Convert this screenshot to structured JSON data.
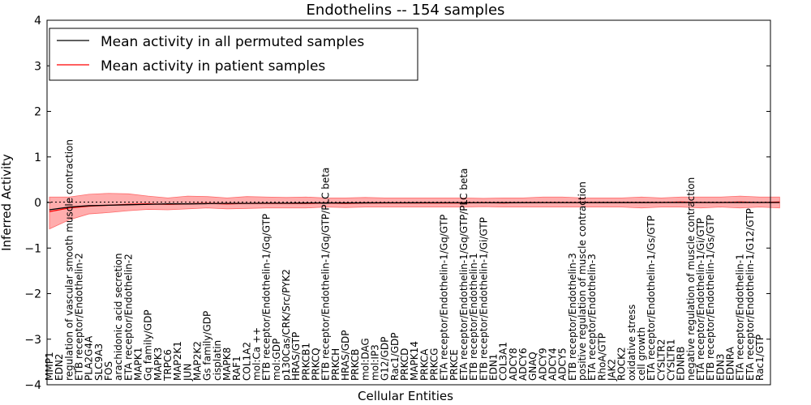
{
  "chart_data": {
    "type": "line",
    "title": "Endothelins -- 154 samples",
    "xlabel": "Cellular Entities",
    "ylabel": "Inferred Activity",
    "ylim": [
      -4,
      4
    ],
    "yticks": [
      "−4",
      "−3",
      "−2",
      "−1",
      "0",
      "1",
      "2",
      "3",
      "4"
    ],
    "grid": false,
    "legend_position": "top-left",
    "categories": [
      "MMP1",
      "EDN2",
      "regulation of vascular smooth muscle contraction",
      "ETB receptor/Endothelin-2",
      "PLA2G4A",
      "SLC9A3",
      "FOS",
      "arachidonic acid secretion",
      "ETA receptor/Endothelin-2",
      "MAPK1",
      "Gq family/GDP",
      "MAPK3",
      "TRPC6",
      "MAP2K1",
      "JUN",
      "MAP2K2",
      "Gs family/GDP",
      "cisplatin",
      "MAPK8",
      "RAF1",
      "COL1A2",
      "mol:Ca ++",
      "ETB receptor/Endothelin-1/Gq/GTP",
      "mol:GDP",
      "p130Cas/CRK/Src/PYK2",
      "HRAS/GTP",
      "PRKCB1",
      "PRKCQ",
      "ETB receptor/Endothelin-1/Gq/GTP/PLC beta",
      "PRKCH",
      "HRAS/GDP",
      "PRKCB",
      "mol:DAG",
      "mol:IP3",
      "G12/GDP",
      "Rac1/GDP",
      "PRKCD",
      "MAPK14",
      "PRKCA",
      "PRKCG",
      "ETA receptor/Endothelin-1/Gq/GTP",
      "PRKCE",
      "ETA receptor/Endothelin-1/Gq/GTP/PLC beta",
      "ETB receptor/Endothelin-1",
      "ETB receptor/Endothelin-1/Gi/GTP",
      "EDN1",
      "COL3A1",
      "ADCY8",
      "ADCY6",
      "GNAQ",
      "ADCY9",
      "ADCY4",
      "ADCY5",
      "ETB receptor/Endothelin-3",
      "positive regulation of muscle contraction",
      "ETA receptor/Endothelin-3",
      "RhoA/GTP",
      "JAK2",
      "ROCK2",
      "oxidative stress",
      "cell growth",
      "ETA receptor/Endothelin-1/Gs/GTP",
      "CYSLTR2",
      "CYSLTR1",
      "EDNRB",
      "negative regulation of muscle contraction",
      "ETA receptor/Endothelin-1/Gi/GTP",
      "ETB receptor/Endothelin-1/Gs/GTP",
      "EDN3",
      "EDNRA",
      "ETA receptor/Endothelin-1",
      "ETA receptor/Endothelin-1/G12/GTP",
      "Rac1/GTP"
    ],
    "series": [
      {
        "name": "Mean activity in all permuted samples",
        "color": "#000000"
      },
      {
        "name": "Mean activity in patient samples",
        "color": "#ff0000"
      }
    ],
    "permuted_x": [
      0,
      2,
      4,
      6,
      8,
      10,
      12,
      14,
      16,
      18,
      20,
      22,
      24,
      26,
      28,
      30,
      32,
      34,
      36,
      38,
      40,
      42,
      44,
      46,
      48,
      50,
      52,
      54,
      56,
      58,
      60,
      62,
      64,
      66,
      68,
      70,
      72,
      74
    ],
    "permuted_mean": [
      -0.16,
      -0.1,
      -0.07,
      -0.06,
      -0.05,
      -0.04,
      -0.03,
      -0.03,
      -0.025,
      -0.02,
      -0.02,
      -0.015,
      -0.015,
      -0.012,
      -0.01,
      -0.01,
      -0.008,
      -0.007,
      -0.006,
      -0.005,
      -0.005,
      -0.004,
      -0.004,
      -0.003,
      -0.003,
      -0.002,
      -0.002,
      -0.002,
      -0.001,
      -0.001,
      -0.001,
      0,
      0,
      0,
      0,
      0,
      0,
      0
    ],
    "patient_x": [
      0,
      2,
      4,
      6,
      8,
      10,
      12,
      14,
      16,
      18,
      20,
      22,
      24,
      26,
      28,
      30,
      32,
      34,
      36,
      38,
      40,
      42,
      44,
      46,
      48,
      50,
      52,
      54,
      56,
      58,
      60,
      62,
      64,
      66,
      68,
      70,
      72,
      74
    ],
    "patient_mean": [
      -0.2,
      -0.12,
      -0.08,
      -0.06,
      -0.04,
      -0.03,
      -0.04,
      -0.03,
      -0.02,
      -0.03,
      -0.02,
      -0.02,
      -0.02,
      -0.02,
      -0.01,
      -0.02,
      -0.01,
      -0.01,
      -0.01,
      -0.01,
      -0.01,
      -0.01,
      0,
      -0.01,
      0,
      0,
      0,
      0,
      0,
      0,
      0,
      0,
      0.01,
      0,
      0,
      0.01,
      0,
      0.01
    ],
    "patient_upper": [
      0.12,
      0.12,
      0.18,
      0.2,
      0.19,
      0.14,
      0.1,
      0.14,
      0.13,
      0.1,
      0.13,
      0.12,
      0.11,
      0.12,
      0.1,
      0.1,
      0.11,
      0.1,
      0.1,
      0.1,
      0.1,
      0.1,
      0.09,
      0.1,
      0.1,
      0.12,
      0.12,
      0.1,
      0.1,
      0.1,
      0.12,
      0.1,
      0.12,
      0.12,
      0.12,
      0.14,
      0.12,
      0.12
    ],
    "patient_lower": [
      -0.58,
      -0.38,
      -0.25,
      -0.22,
      -0.18,
      -0.15,
      -0.16,
      -0.14,
      -0.12,
      -0.14,
      -0.13,
      -0.12,
      -0.12,
      -0.12,
      -0.1,
      -0.11,
      -0.1,
      -0.1,
      -0.1,
      -0.1,
      -0.1,
      -0.1,
      -0.09,
      -0.1,
      -0.1,
      -0.1,
      -0.1,
      -0.1,
      -0.1,
      -0.1,
      -0.12,
      -0.1,
      -0.1,
      -0.12,
      -0.1,
      -0.12,
      -0.1,
      -0.12
    ]
  }
}
